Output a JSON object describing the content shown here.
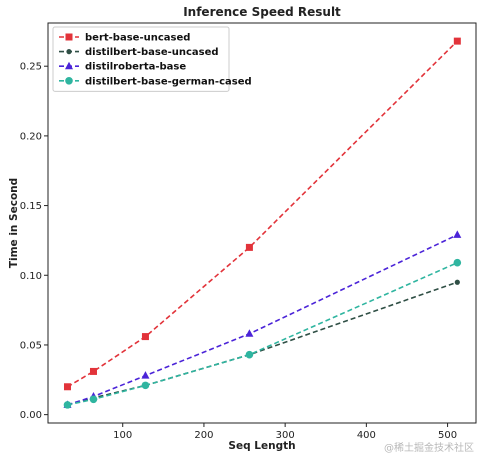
{
  "chart_data": {
    "type": "line",
    "title": "Inference Speed Result",
    "xlabel": "Seq Length",
    "ylabel": "Time in Second",
    "xlim": [
      8,
      535
    ],
    "ylim": [
      -0.006,
      0.281
    ],
    "xticks": [
      100,
      200,
      300,
      400,
      500
    ],
    "yticks": [
      0.0,
      0.05,
      0.1,
      0.15,
      0.2,
      0.25
    ],
    "ytick_labels": [
      "0.00",
      "0.05",
      "0.10",
      "0.15",
      "0.20",
      "0.25"
    ],
    "grid": false,
    "legend_position": "upper-left",
    "series": [
      {
        "name": "bert-base-uncased",
        "color": "#e2333a",
        "marker": "square",
        "x": [
          32,
          64,
          128,
          256,
          512
        ],
        "y": [
          0.02,
          0.031,
          0.056,
          0.12,
          0.268
        ]
      },
      {
        "name": "distilbert-base-uncased",
        "color": "#2f4f45",
        "marker": "circle-small",
        "x": [
          32,
          64,
          128,
          256,
          512
        ],
        "y": [
          0.007,
          0.012,
          0.021,
          0.043,
          0.095
        ]
      },
      {
        "name": "distilroberta-base",
        "color": "#4b24d8",
        "marker": "triangle",
        "x": [
          32,
          64,
          128,
          256,
          512
        ],
        "y": [
          0.007,
          0.013,
          0.028,
          0.058,
          0.129
        ]
      },
      {
        "name": "distilbert-base-german-cased",
        "color": "#2fb5a0",
        "marker": "circle",
        "x": [
          32,
          64,
          128,
          256,
          512
        ],
        "y": [
          0.007,
          0.011,
          0.021,
          0.043,
          0.109
        ]
      }
    ]
  },
  "watermark": "@稀土掘金技术社区"
}
